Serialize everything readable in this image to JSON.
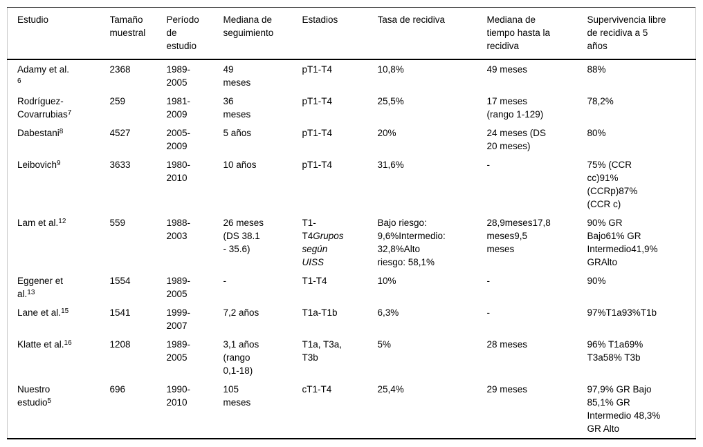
{
  "colors": {
    "background": "#ffffff",
    "text": "#000000",
    "rule_dark": "#000000",
    "rule_light": "#c9c9c9"
  },
  "table": {
    "headers": [
      "Estudio",
      "Tamaño\nmuestral",
      "Período\nde\nestudio",
      "Mediana de\nseguimiento",
      "Estadios",
      "Tasa de recidiva",
      "Mediana de\ntiempo hasta la\nrecidiva",
      "Supervivencia libre\nde recidiva a 5\naños"
    ],
    "rows": [
      [
        [
          {
            "t": "Adamy et al.\n"
          },
          {
            "t": "6",
            "sup": true
          }
        ],
        [
          {
            "t": "2368"
          }
        ],
        [
          {
            "t": "1989-\n2005"
          }
        ],
        [
          {
            "t": "49\nmeses"
          }
        ],
        [
          {
            "t": "pT1-T4"
          }
        ],
        [
          {
            "t": "10,8%"
          }
        ],
        [
          {
            "t": "49 meses"
          }
        ],
        [
          {
            "t": "88%"
          }
        ]
      ],
      [
        [
          {
            "t": "Rodríguez-\nCovarrubias"
          },
          {
            "t": "7",
            "sup": true
          }
        ],
        [
          {
            "t": "259"
          }
        ],
        [
          {
            "t": "1981-\n2009"
          }
        ],
        [
          {
            "t": "36\nmeses"
          }
        ],
        [
          {
            "t": "pT1-T4"
          }
        ],
        [
          {
            "t": "25,5%"
          }
        ],
        [
          {
            "t": "17 meses\n(rango 1-129)"
          }
        ],
        [
          {
            "t": "78,2%"
          }
        ]
      ],
      [
        [
          {
            "t": "Dabestani"
          },
          {
            "t": "8",
            "sup": true
          }
        ],
        [
          {
            "t": "4527"
          }
        ],
        [
          {
            "t": "2005-\n2009"
          }
        ],
        [
          {
            "t": "5 años"
          }
        ],
        [
          {
            "t": "pT1-T4"
          }
        ],
        [
          {
            "t": "20%"
          }
        ],
        [
          {
            "t": "24 meses (DS\n20 meses)"
          }
        ],
        [
          {
            "t": "80%"
          }
        ]
      ],
      [
        [
          {
            "t": "Leibovich"
          },
          {
            "t": "9",
            "sup": true
          }
        ],
        [
          {
            "t": "3633"
          }
        ],
        [
          {
            "t": "1980-\n2010"
          }
        ],
        [
          {
            "t": "10 años"
          }
        ],
        [
          {
            "t": "pT1-T4"
          }
        ],
        [
          {
            "t": "31,6%"
          }
        ],
        [
          {
            "t": "-"
          }
        ],
        [
          {
            "t": "75% (CCR\ncc)91%\n(CCRp)87%\n(CCR c)"
          }
        ]
      ],
      [
        [
          {
            "t": "Lam et al."
          },
          {
            "t": "12",
            "sup": true
          }
        ],
        [
          {
            "t": "559"
          }
        ],
        [
          {
            "t": "1988-\n2003"
          }
        ],
        [
          {
            "t": "26 meses\n(DS 38.1\n- 35.6)"
          }
        ],
        [
          {
            "t": "T1-\nT4"
          },
          {
            "t": "Grupos\nsegún\nUISS",
            "italic": true
          }
        ],
        [
          {
            "t": "Bajo riesgo:\n9,6%Intermedio:\n32,8%Alto\nriesgo: 58,1%"
          }
        ],
        [
          {
            "t": "28,9meses17,8\nmeses9,5\nmeses"
          }
        ],
        [
          {
            "t": "90% GR\nBajo61% GR\nIntermedio41,9%\nGRAlto"
          }
        ]
      ],
      [
        [
          {
            "t": "Eggener et\nal."
          },
          {
            "t": "13",
            "sup": true
          }
        ],
        [
          {
            "t": "1554"
          }
        ],
        [
          {
            "t": "1989-\n2005"
          }
        ],
        [
          {
            "t": "-"
          }
        ],
        [
          {
            "t": "T1-T4"
          }
        ],
        [
          {
            "t": "10%"
          }
        ],
        [
          {
            "t": "-"
          }
        ],
        [
          {
            "t": "90%"
          }
        ]
      ],
      [
        [
          {
            "t": "Lane et al."
          },
          {
            "t": "15",
            "sup": true
          }
        ],
        [
          {
            "t": "1541"
          }
        ],
        [
          {
            "t": "1999-\n2007"
          }
        ],
        [
          {
            "t": "7,2 años"
          }
        ],
        [
          {
            "t": "T1a-T1b"
          }
        ],
        [
          {
            "t": "6,3%"
          }
        ],
        [
          {
            "t": "-"
          }
        ],
        [
          {
            "t": "97%T1a93%T1b"
          }
        ]
      ],
      [
        [
          {
            "t": "Klatte et al."
          },
          {
            "t": "16",
            "sup": true
          }
        ],
        [
          {
            "t": "1208"
          }
        ],
        [
          {
            "t": "1989-\n2005"
          }
        ],
        [
          {
            "t": "3,1 años\n(rango\n0,1-18)"
          }
        ],
        [
          {
            "t": "T1a, T3a,\nT3b"
          }
        ],
        [
          {
            "t": "5%"
          }
        ],
        [
          {
            "t": "28 meses"
          }
        ],
        [
          {
            "t": "96% T1a69%\nT3a58% T3b"
          }
        ]
      ],
      [
        [
          {
            "t": "Nuestro\nestudio"
          },
          {
            "t": "5",
            "sup": true
          }
        ],
        [
          {
            "t": "696"
          }
        ],
        [
          {
            "t": "1990-\n2010"
          }
        ],
        [
          {
            "t": "105\nmeses"
          }
        ],
        [
          {
            "t": "cT1-T4"
          }
        ],
        [
          {
            "t": "25,4%"
          }
        ],
        [
          {
            "t": "29 meses"
          }
        ],
        [
          {
            "t": "97,9% GR Bajo\n85,1% GR\nIntermedio 48,3%\nGR Alto"
          }
        ]
      ]
    ]
  }
}
